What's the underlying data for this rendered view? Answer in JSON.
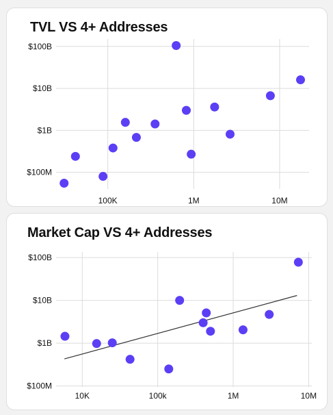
{
  "chart_data": [
    {
      "type": "scatter",
      "title": "TVL VS 4+ Addresses",
      "xscale": "log",
      "yscale": "log",
      "xlim": [
        25000,
        22000000
      ],
      "ylim": [
        40000000,
        150000000000
      ],
      "x_ticks": [
        {
          "value": 100000,
          "label": "100K"
        },
        {
          "value": 1000000,
          "label": "1M"
        },
        {
          "value": 10000000,
          "label": "10M"
        }
      ],
      "y_ticks": [
        {
          "value": 100000000000,
          "label": "$100B"
        },
        {
          "value": 10000000000,
          "label": "$10B"
        },
        {
          "value": 1000000000,
          "label": "$1B"
        },
        {
          "value": 100000000,
          "label": "$100M"
        }
      ],
      "grid": true,
      "point_color": "#5b3ff5",
      "points": [
        {
          "x": 31000,
          "y": 55000000
        },
        {
          "x": 42000,
          "y": 240000000
        },
        {
          "x": 88000,
          "y": 80000000
        },
        {
          "x": 115000,
          "y": 380000000
        },
        {
          "x": 160000,
          "y": 1550000000
        },
        {
          "x": 215000,
          "y": 680000000
        },
        {
          "x": 355000,
          "y": 1420000000
        },
        {
          "x": 625000,
          "y": 105000000000
        },
        {
          "x": 820000,
          "y": 3000000000
        },
        {
          "x": 935000,
          "y": 270000000
        },
        {
          "x": 1750000,
          "y": 3600000000
        },
        {
          "x": 2650000,
          "y": 810000000
        },
        {
          "x": 7800000,
          "y": 6700000000
        },
        {
          "x": 17500000,
          "y": 16000000000
        }
      ]
    },
    {
      "type": "scatter",
      "title": "Market Cap VS 4+ Addresses",
      "xscale": "log",
      "yscale": "log",
      "xlim": [
        4500,
        11000000
      ],
      "ylim": [
        95000000,
        135000000000
      ],
      "x_ticks": [
        {
          "value": 10000,
          "label": "10K"
        },
        {
          "value": 100000,
          "label": "100k"
        },
        {
          "value": 1000000,
          "label": "1M"
        },
        {
          "value": 10000000,
          "label": "10M"
        }
      ],
      "y_ticks": [
        {
          "value": 100000000000,
          "label": "$100B"
        },
        {
          "value": 10000000000,
          "label": "$10B"
        },
        {
          "value": 1000000000,
          "label": "$1B"
        },
        {
          "value": 100000000,
          "label": "$100M"
        }
      ],
      "grid": true,
      "point_color": "#5b3ff5",
      "trendline": {
        "x": [
          5800,
          7000000
        ],
        "y": [
          430000000,
          13000000000
        ]
      },
      "points": [
        {
          "x": 5900,
          "y": 1450000000
        },
        {
          "x": 15500,
          "y": 980000000
        },
        {
          "x": 25000,
          "y": 1020000000
        },
        {
          "x": 43000,
          "y": 420000000
        },
        {
          "x": 140000,
          "y": 250000000
        },
        {
          "x": 195000,
          "y": 10000000000
        },
        {
          "x": 400000,
          "y": 3000000000
        },
        {
          "x": 440000,
          "y": 5100000000
        },
        {
          "x": 500000,
          "y": 1900000000
        },
        {
          "x": 1350000,
          "y": 2050000000
        },
        {
          "x": 3000000,
          "y": 4700000000
        },
        {
          "x": 7300000,
          "y": 78000000000
        }
      ]
    }
  ]
}
